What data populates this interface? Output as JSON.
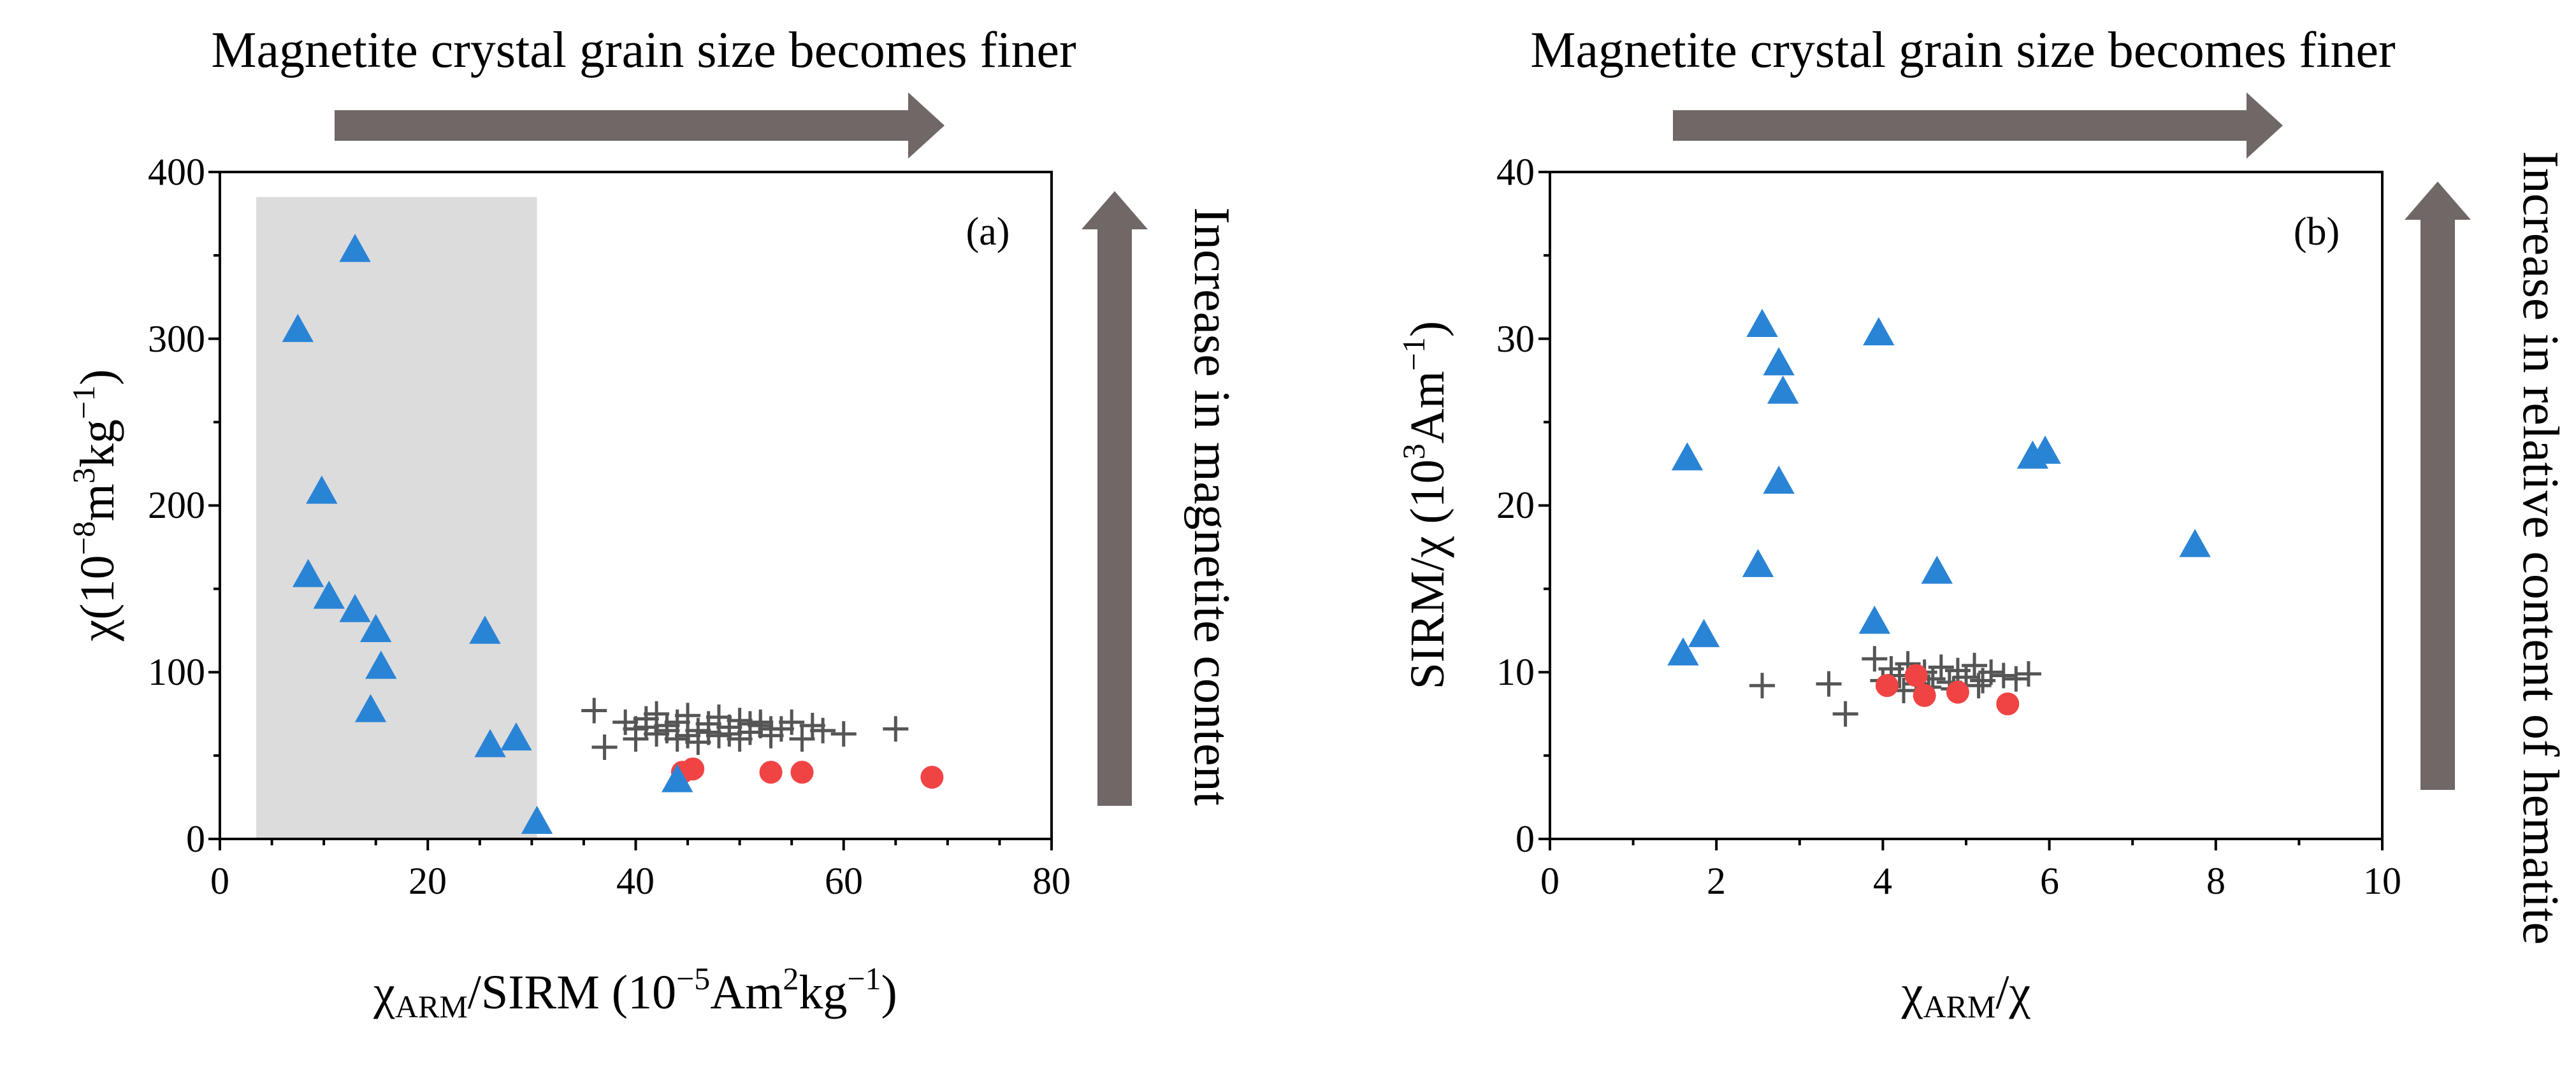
{
  "colors": {
    "triangle": "#2a84d6",
    "cross": "#555555",
    "circle": "#f04444",
    "arrow": "#6f6866",
    "shade": "#dcdcdc",
    "axis": "#000000"
  },
  "panels": [
    {
      "label": "(a)",
      "top_text": "Magnetite crystal grain size becomes finer",
      "side_text": "Increase in magnetite content",
      "xaxis": {
        "label_main": "χ",
        "label_sub": "ARM",
        "label_rest": "/SIRM (10",
        "label_sup": "−5",
        "label_rest2": "Am",
        "label_sup2": "2",
        "label_rest3": "kg",
        "label_sup3": "−1",
        "label_end": ")"
      },
      "yaxis": {
        "label_main": "χ(10",
        "label_sup": "−8",
        "label_rest": "m",
        "label_sup2": "3",
        "label_rest2": "kg",
        "label_sup3": "−1",
        "label_end": ")"
      },
      "xticks": [
        "0",
        "20",
        "40",
        "60",
        "80"
      ],
      "yticks": [
        "0",
        "100",
        "200",
        "300",
        "400"
      ]
    },
    {
      "label": "(b)",
      "top_text": "Magnetite crystal grain size becomes finer",
      "side_text": "Increase in relative content of hematite",
      "xaxis": {
        "label_main": "χ",
        "label_sub": "ARM",
        "label_rest": "/χ"
      },
      "yaxis": {
        "label_main": "SIRM/χ (10",
        "label_sup": "3",
        "label_rest": "Am",
        "label_sup2": "−1",
        "label_end": ")"
      },
      "xticks": [
        "0",
        "2",
        "4",
        "6",
        "8",
        "10"
      ],
      "yticks": [
        "0",
        "10",
        "20",
        "30",
        "40"
      ]
    }
  ],
  "chart_data": [
    {
      "type": "scatter",
      "title": "",
      "xlim": [
        0,
        80
      ],
      "ylim": [
        0,
        400
      ],
      "shaded_region": {
        "x": [
          3.5,
          30.5
        ],
        "y": [
          0,
          385
        ]
      },
      "series": [
        {
          "marker": "triangle",
          "points": [
            [
              7.5,
              305
            ],
            [
              13,
              353
            ],
            [
              9.8,
              208
            ],
            [
              8.5,
              158
            ],
            [
              10.5,
              145
            ],
            [
              13,
              137
            ],
            [
              15,
              125
            ],
            [
              15.5,
              103
            ],
            [
              14.5,
              77
            ],
            [
              25.5,
              124
            ],
            [
              26,
              56
            ],
            [
              28.5,
              60
            ],
            [
              30.5,
              10
            ],
            [
              44,
              35
            ]
          ]
        },
        {
          "marker": "cross",
          "points": [
            [
              36,
              77
            ],
            [
              37,
              55
            ],
            [
              39,
              70
            ],
            [
              40,
              66
            ],
            [
              41,
              72
            ],
            [
              42,
              63
            ],
            [
              43,
              68
            ],
            [
              44,
              60
            ],
            [
              45,
              74
            ],
            [
              46,
              65
            ],
            [
              47,
              69
            ],
            [
              48,
              62
            ],
            [
              49,
              67
            ],
            [
              50,
              71
            ],
            [
              51,
              64
            ],
            [
              52,
              68
            ],
            [
              53,
              62
            ],
            [
              54,
              66
            ],
            [
              55,
              70
            ],
            [
              56,
              60
            ],
            [
              57,
              68
            ],
            [
              58,
              65
            ],
            [
              60,
              63
            ],
            [
              65,
              66
            ],
            [
              40,
              60
            ],
            [
              42,
              75
            ],
            [
              44,
              70
            ],
            [
              46,
              58
            ],
            [
              48,
              73
            ],
            [
              50,
              60
            ],
            [
              52,
              70
            ],
            [
              47,
              64
            ],
            [
              43,
              65
            ],
            [
              45,
              62
            ],
            [
              49,
              63
            ],
            [
              51,
              69
            ],
            [
              41,
              67
            ],
            [
              53,
              66
            ]
          ]
        },
        {
          "marker": "circle",
          "points": [
            [
              44.5,
              40
            ],
            [
              45.5,
              42
            ],
            [
              53,
              40
            ],
            [
              56,
              40
            ],
            [
              68.5,
              37
            ]
          ]
        }
      ]
    },
    {
      "type": "scatter",
      "title": "",
      "xlim": [
        0,
        10
      ],
      "ylim": [
        0,
        40
      ],
      "series": [
        {
          "marker": "triangle",
          "points": [
            [
              2.55,
              30.8
            ],
            [
              2.75,
              28.5
            ],
            [
              2.8,
              26.8
            ],
            [
              3.95,
              30.3
            ],
            [
              1.65,
              22.8
            ],
            [
              2.75,
              21.4
            ],
            [
              1.6,
              11.1
            ],
            [
              1.85,
              12.2
            ],
            [
              2.5,
              16.4
            ],
            [
              3.9,
              13.0
            ],
            [
              4.65,
              16.0
            ],
            [
              5.8,
              22.9
            ],
            [
              5.95,
              23.2
            ],
            [
              7.75,
              17.6
            ]
          ]
        },
        {
          "marker": "cross",
          "points": [
            [
              2.55,
              9.2
            ],
            [
              3.35,
              9.3
            ],
            [
              3.55,
              7.5
            ],
            [
              3.9,
              10.8
            ],
            [
              4.0,
              9.5
            ],
            [
              4.1,
              10.2
            ],
            [
              4.2,
              9.8
            ],
            [
              4.3,
              10.5
            ],
            [
              4.4,
              9.3
            ],
            [
              4.5,
              10.0
            ],
            [
              4.6,
              9.6
            ],
            [
              4.7,
              10.3
            ],
            [
              4.8,
              9.4
            ],
            [
              4.9,
              10.1
            ],
            [
              5.0,
              9.7
            ],
            [
              5.1,
              10.4
            ],
            [
              5.2,
              9.5
            ],
            [
              5.3,
              10.0
            ],
            [
              5.45,
              9.8
            ],
            [
              5.6,
              9.6
            ],
            [
              5.75,
              9.9
            ],
            [
              4.25,
              8.9
            ],
            [
              4.55,
              9.1
            ],
            [
              4.85,
              9.0
            ],
            [
              5.15,
              9.2
            ]
          ]
        },
        {
          "marker": "circle",
          "points": [
            [
              4.05,
              9.2
            ],
            [
              4.4,
              9.8
            ],
            [
              4.5,
              8.6
            ],
            [
              4.9,
              8.8
            ],
            [
              5.5,
              8.1
            ]
          ]
        }
      ]
    }
  ]
}
